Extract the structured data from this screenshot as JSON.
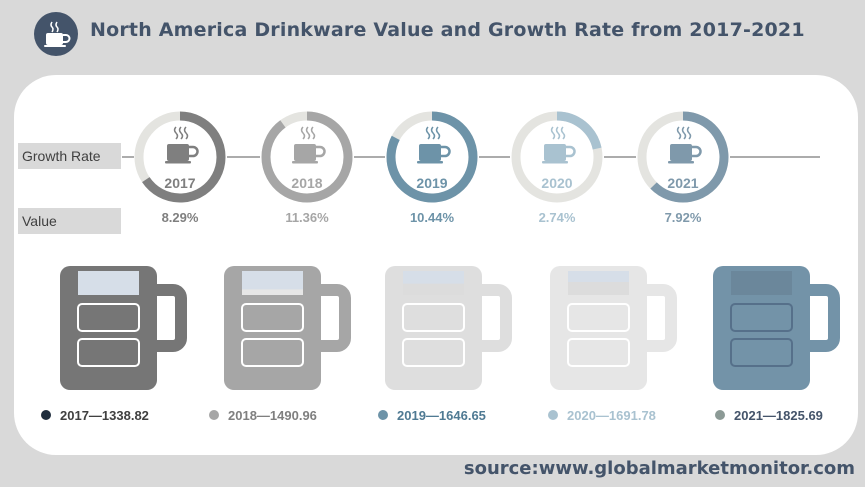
{
  "header": {
    "title": "North America Drinkware Value and Growth Rate from 2017-2021",
    "icon": "coffee-cup-icon"
  },
  "rows": {
    "growth_label": "Growth Rate",
    "value_label": "Value"
  },
  "source": "source:www.globalmarketmonitor.com",
  "chart_data": {
    "type": "infographic",
    "title": "North America Drinkware Value and Growth Rate from 2017-2021",
    "years": [
      "2017",
      "2018",
      "2019",
      "2020",
      "2021"
    ],
    "growth_rate_labels": [
      "8.29%",
      "11.36%",
      "10.44%",
      "2.74%",
      "7.92%"
    ],
    "growth_rate": [
      8.29,
      11.36,
      10.44,
      2.74,
      7.92
    ],
    "value_labels": [
      "2017—1338.82",
      "2018—1490.96",
      "2019—1646.65",
      "2020—1691.78",
      "2021—1825.69"
    ],
    "value": [
      1338.82,
      1490.96,
      1646.65,
      1691.78,
      1825.69
    ],
    "colors": [
      "#7f7f7f",
      "#a6a6a6",
      "#6d93a8",
      "#a9c2d0",
      "#7f99ab"
    ],
    "legend_dot_colors": [
      "#1f2d3d",
      "#a6a6a6",
      "#6d93a8",
      "#a9c2d0",
      "#8c9a96"
    ],
    "mug_colors": [
      "#767676",
      "#a6a6a6",
      "#dedede",
      "#e6e6e6",
      "#7393a8"
    ]
  }
}
